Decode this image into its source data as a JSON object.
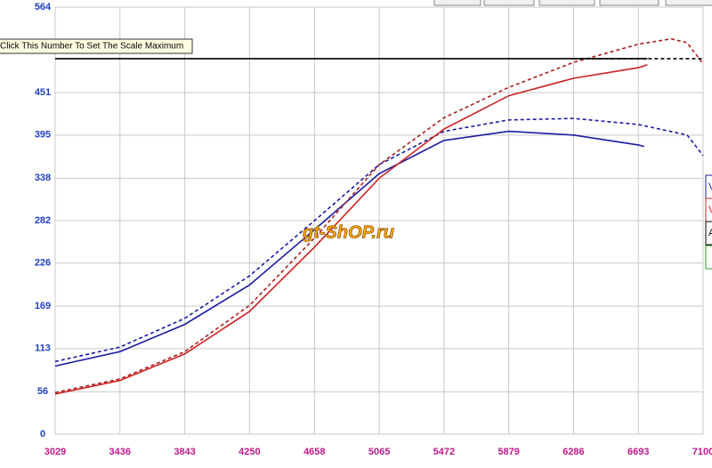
{
  "chart_data": {
    "type": "line",
    "tooltip": "Click This Number To Set The Scale Maximum",
    "watermark": "gt-ShOP.ru",
    "legend_labels": [
      "V",
      "V",
      "A"
    ],
    "xlim": [
      3029,
      7100
    ],
    "ylim": [
      0,
      564
    ],
    "xticks": [
      3029,
      3436,
      3843,
      4250,
      4658,
      5065,
      5472,
      5879,
      6286,
      6693,
      7100
    ],
    "yticks": [
      0,
      56,
      113,
      169,
      226,
      282,
      338,
      395,
      451,
      564
    ],
    "grid": true,
    "series": [
      {
        "color": "#1a1aa0",
        "dashed": false,
        "x": [
          3029,
          3436,
          3843,
          4250,
          4658,
          5065,
          5472,
          5879,
          6286,
          6693,
          6730
        ],
        "values": [
          90,
          109,
          145,
          197,
          270,
          344,
          388,
          400,
          395,
          382,
          380
        ]
      },
      {
        "color": "#1a1aa0",
        "dashed": true,
        "x": [
          3029,
          3436,
          3843,
          4250,
          4658,
          5065,
          5472,
          5879,
          6286,
          6693,
          7000,
          7100
        ],
        "values": [
          96,
          115,
          153,
          209,
          282,
          356,
          400,
          415,
          417,
          409,
          395,
          368
        ]
      },
      {
        "color": "#cc2222",
        "dashed": false,
        "x": [
          3029,
          3436,
          3843,
          4250,
          4658,
          5065,
          5472,
          5879,
          6286,
          6693,
          6750
        ],
        "values": [
          53,
          71,
          106,
          162,
          247,
          338,
          403,
          447,
          470,
          484,
          488
        ]
      },
      {
        "color": "#a82020",
        "dashed": true,
        "x": [
          3029,
          3436,
          3843,
          4250,
          4658,
          5065,
          5472,
          5879,
          6286,
          6693,
          6900,
          7000,
          7100
        ],
        "values": [
          55,
          73,
          109,
          170,
          259,
          356,
          418,
          458,
          491,
          515,
          522,
          517,
          489
        ]
      },
      {
        "color": "#000000",
        "dashed": false,
        "x": [
          3029,
          6750
        ],
        "values": [
          496,
          496
        ]
      },
      {
        "color": "#000000",
        "dashed": true,
        "x": [
          6286,
          7100
        ],
        "values": [
          496,
          496
        ]
      }
    ]
  }
}
